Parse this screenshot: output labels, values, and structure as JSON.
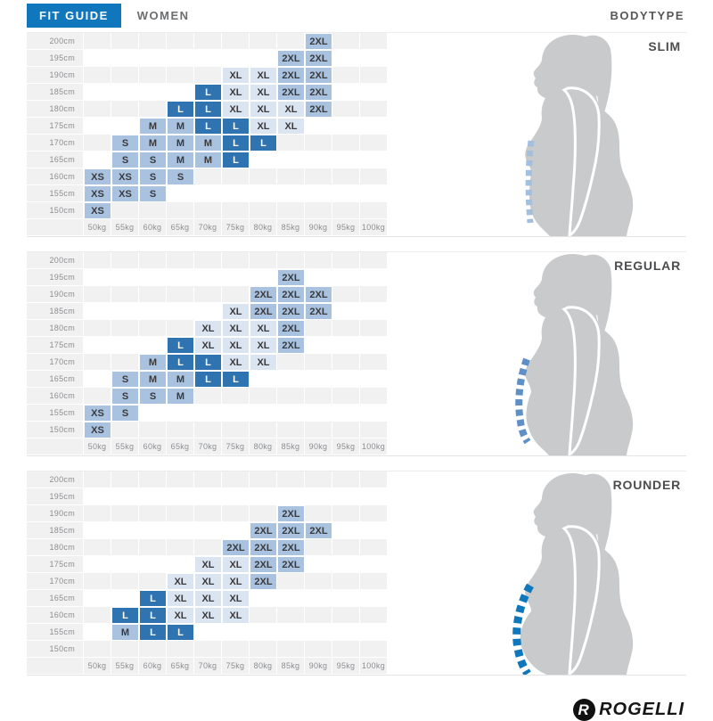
{
  "header": {
    "fit_guide_label": "FIT GUIDE",
    "gender_label": "WOMEN",
    "bodytype_label": "BODYTYPE"
  },
  "colors": {
    "accent_blue": "#1077bc",
    "cell_dark": "#2f73b1",
    "cell_medium": "#a8c2e0",
    "cell_light": "#dbe5f1",
    "row_stripe": "#f1f1f2",
    "silhouette_gray": "#c9cacb",
    "dash_slim": "#a3bfde",
    "dash_regular": "#5e90c7",
    "dash_rounder": "#0f77bc"
  },
  "size_shades": {
    "XS": "medium",
    "S": "medium",
    "M": "medium",
    "L": "dark",
    "XL": "light",
    "2XL": "medium"
  },
  "logo": {
    "brand": "ROGELLI",
    "mark_letter": "R"
  },
  "chart_data": [
    {
      "type": "heatmap",
      "title": "SLIM",
      "xlabel": "weight",
      "ylabel": "height",
      "x": [
        "50kg",
        "55kg",
        "60kg",
        "65kg",
        "70kg",
        "75kg",
        "80kg",
        "85kg",
        "90kg",
        "95kg",
        "100kg"
      ],
      "y": [
        "200cm",
        "195cm",
        "190cm",
        "185cm",
        "180cm",
        "175cm",
        "170cm",
        "165cm",
        "160cm",
        "155cm",
        "150cm"
      ],
      "values": [
        [
          "",
          "",
          "",
          "",
          "",
          "",
          "",
          "",
          "2XL",
          "",
          ""
        ],
        [
          "",
          "",
          "",
          "",
          "",
          "",
          "",
          "2XL",
          "2XL",
          "",
          ""
        ],
        [
          "",
          "",
          "",
          "",
          "",
          "XL",
          "XL",
          "2XL",
          "2XL",
          "",
          ""
        ],
        [
          "",
          "",
          "",
          "",
          "L",
          "XL",
          "XL",
          "2XL",
          "2XL",
          "",
          ""
        ],
        [
          "",
          "",
          "",
          "L",
          "L",
          "XL",
          "XL",
          "XL",
          "2XL",
          "",
          ""
        ],
        [
          "",
          "",
          "M",
          "M",
          "L",
          "L",
          "XL",
          "XL",
          "",
          "",
          ""
        ],
        [
          "",
          "S",
          "M",
          "M",
          "M",
          "L",
          "L",
          "",
          "",
          "",
          ""
        ],
        [
          "",
          "S",
          "S",
          "M",
          "M",
          "L",
          "",
          "",
          "",
          "",
          ""
        ],
        [
          "XS",
          "XS",
          "S",
          "S",
          "",
          "",
          "",
          "",
          "",
          "",
          ""
        ],
        [
          "XS",
          "XS",
          "S",
          "",
          "",
          "",
          "",
          "",
          "",
          "",
          ""
        ],
        [
          "XS",
          "",
          "",
          "",
          "",
          "",
          "",
          "",
          "",
          "",
          ""
        ]
      ]
    },
    {
      "type": "heatmap",
      "title": "REGULAR",
      "xlabel": "weight",
      "ylabel": "height",
      "x": [
        "50kg",
        "55kg",
        "60kg",
        "65kg",
        "70kg",
        "75kg",
        "80kg",
        "85kg",
        "90kg",
        "95kg",
        "100kg"
      ],
      "y": [
        "200cm",
        "195cm",
        "190cm",
        "185cm",
        "180cm",
        "175cm",
        "170cm",
        "165cm",
        "160cm",
        "155cm",
        "150cm"
      ],
      "values": [
        [
          "",
          "",
          "",
          "",
          "",
          "",
          "",
          "",
          "",
          "",
          ""
        ],
        [
          "",
          "",
          "",
          "",
          "",
          "",
          "",
          "2XL",
          "",
          "",
          ""
        ],
        [
          "",
          "",
          "",
          "",
          "",
          "",
          "2XL",
          "2XL",
          "2XL",
          "",
          ""
        ],
        [
          "",
          "",
          "",
          "",
          "",
          "XL",
          "2XL",
          "2XL",
          "2XL",
          "",
          ""
        ],
        [
          "",
          "",
          "",
          "",
          "XL",
          "XL",
          "XL",
          "2XL",
          "",
          "",
          ""
        ],
        [
          "",
          "",
          "",
          "L",
          "XL",
          "XL",
          "XL",
          "2XL",
          "",
          "",
          ""
        ],
        [
          "",
          "",
          "M",
          "L",
          "L",
          "XL",
          "XL",
          "",
          "",
          "",
          ""
        ],
        [
          "",
          "S",
          "M",
          "M",
          "L",
          "L",
          "",
          "",
          "",
          "",
          ""
        ],
        [
          "",
          "S",
          "S",
          "M",
          "",
          "",
          "",
          "",
          "",
          "",
          ""
        ],
        [
          "XS",
          "S",
          "",
          "",
          "",
          "",
          "",
          "",
          "",
          "",
          ""
        ],
        [
          "XS",
          "",
          "",
          "",
          "",
          "",
          "",
          "",
          "",
          "",
          ""
        ]
      ]
    },
    {
      "type": "heatmap",
      "title": "ROUNDER",
      "xlabel": "weight",
      "ylabel": "height",
      "x": [
        "50kg",
        "55kg",
        "60kg",
        "65kg",
        "70kg",
        "75kg",
        "80kg",
        "85kg",
        "90kg",
        "95kg",
        "100kg"
      ],
      "y": [
        "200cm",
        "195cm",
        "190cm",
        "185cm",
        "180cm",
        "175cm",
        "170cm",
        "165cm",
        "160cm",
        "155cm",
        "150cm"
      ],
      "values": [
        [
          "",
          "",
          "",
          "",
          "",
          "",
          "",
          "",
          "",
          "",
          ""
        ],
        [
          "",
          "",
          "",
          "",
          "",
          "",
          "",
          "",
          "",
          "",
          ""
        ],
        [
          "",
          "",
          "",
          "",
          "",
          "",
          "",
          "2XL",
          "",
          "",
          ""
        ],
        [
          "",
          "",
          "",
          "",
          "",
          "",
          "2XL",
          "2XL",
          "2XL",
          "",
          ""
        ],
        [
          "",
          "",
          "",
          "",
          "",
          "2XL",
          "2XL",
          "2XL",
          "",
          "",
          ""
        ],
        [
          "",
          "",
          "",
          "",
          "XL",
          "XL",
          "2XL",
          "2XL",
          "",
          "",
          ""
        ],
        [
          "",
          "",
          "",
          "XL",
          "XL",
          "XL",
          "2XL",
          "",
          "",
          "",
          ""
        ],
        [
          "",
          "",
          "L",
          "XL",
          "XL",
          "XL",
          "",
          "",
          "",
          "",
          ""
        ],
        [
          "",
          "L",
          "L",
          "XL",
          "XL",
          "XL",
          "",
          "",
          "",
          "",
          ""
        ],
        [
          "",
          "M",
          "L",
          "L",
          "",
          "",
          "",
          "",
          "",
          "",
          ""
        ],
        [
          "",
          "",
          "",
          "",
          "",
          "",
          "",
          "",
          "",
          "",
          ""
        ]
      ]
    }
  ]
}
